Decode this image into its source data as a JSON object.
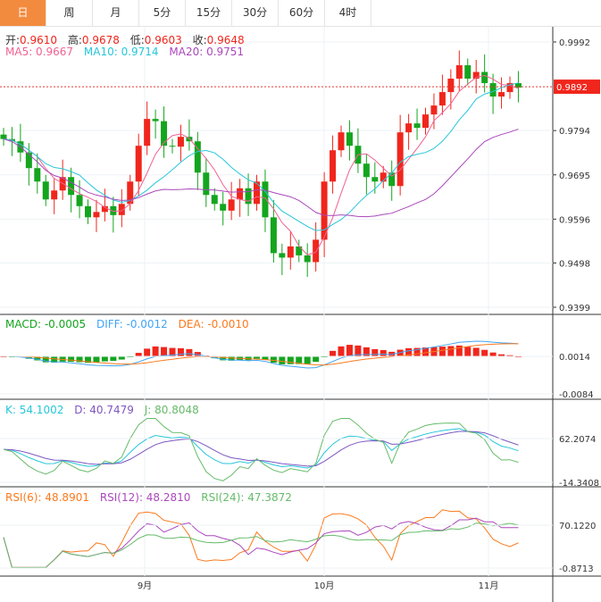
{
  "tabs": [
    "日",
    "周",
    "月",
    "5分",
    "15分",
    "30分",
    "60分",
    "4时"
  ],
  "active_tab": 0,
  "ohlc_legend": {
    "open_label": "开:",
    "open": "0.9610",
    "high_label": "高:",
    "high": "0.9678",
    "low_label": "低:",
    "low": "0.9603",
    "close_label": "收:",
    "close": "0.9648"
  },
  "ma_legend": {
    "ma5": "MA5: 0.9667",
    "ma10": "MA10: 0.9714",
    "ma20": "MA20: 0.9751"
  },
  "macd_legend": {
    "macd": "MACD: -0.0005",
    "diff": "DIFF: -0.0012",
    "dea": "DEA: -0.0010"
  },
  "kdj_legend": {
    "k": "K: 54.1002",
    "d": "D: 40.7479",
    "j": "J: 80.8048"
  },
  "rsi_legend": {
    "rsi6": "RSI(6): 48.8901",
    "rsi12": "RSI(12): 48.2810",
    "rsi24": "RSI(24): 47.3872"
  },
  "current_price": "0.9892",
  "colors": {
    "up": "#f0261c",
    "down": "#14a51e",
    "ma5": "#f06292",
    "ma10": "#26c6da",
    "ma20": "#ab47bc",
    "accent": "#f38b3f"
  },
  "chart_data": {
    "type": "candlestick",
    "price_ticks": [
      "0.9992",
      "0.9892",
      "0.9794",
      "0.9695",
      "0.9596",
      "0.9498",
      "0.9399"
    ],
    "price_range": [
      0.9399,
      0.9992
    ],
    "macd_ticks": [
      "0.0014",
      "-0.0084"
    ],
    "kdj_ticks": [
      "62.2074",
      "-14.3408"
    ],
    "rsi_ticks": [
      "70.1220",
      "-0.8713"
    ],
    "x_labels": [
      {
        "label": "9月",
        "index": 17
      },
      {
        "label": "10月",
        "index": 38
      },
      {
        "label": "11月",
        "index": 57
      }
    ],
    "closes": [
      0.9775,
      0.977,
      0.9745,
      0.971,
      0.968,
      0.964,
      0.966,
      0.969,
      0.965,
      0.9625,
      0.96,
      0.9612,
      0.9625,
      0.9605,
      0.963,
      0.968,
      0.976,
      0.982,
      0.9815,
      0.976,
      0.9758,
      0.978,
      0.977,
      0.97,
      0.965,
      0.963,
      0.9615,
      0.964,
      0.9665,
      0.963,
      0.968,
      0.96,
      0.952,
      0.951,
      0.9535,
      0.9515,
      0.95,
      0.955,
      0.968,
      0.975,
      0.979,
      0.976,
      0.972,
      0.969,
      0.968,
      0.97,
      0.967,
      0.979,
      0.981,
      0.98,
      0.983,
      0.985,
      0.988,
      0.991,
      0.994,
      0.991,
      0.9925,
      0.99,
      0.987,
      0.988,
      0.99,
      0.989
    ]
  }
}
